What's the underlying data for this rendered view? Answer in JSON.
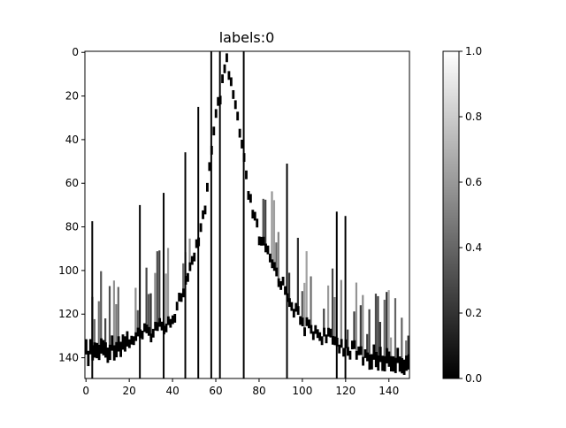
{
  "chart_data": {
    "type": "heatmap",
    "title": "labels:0",
    "xlabel": "",
    "ylabel": "",
    "colormap": "gray",
    "x_ticks": [
      0,
      20,
      40,
      60,
      80,
      100,
      120,
      140
    ],
    "y_ticks": [
      0,
      20,
      40,
      60,
      80,
      100,
      120,
      140
    ],
    "xlim": [
      -0.5,
      149.5
    ],
    "ylim": [
      149.5,
      -0.5
    ],
    "grid": false,
    "colorbar": {
      "ticks": [
        "0.0",
        "0.2",
        "0.4",
        "0.6",
        "0.8",
        "1.0"
      ],
      "min": 0.0,
      "max": 1.0
    },
    "matrix_shape": [
      150,
      150
    ],
    "background_value": 1.0,
    "ridge_profile": {
      "description_points_x": [
        0,
        10,
        20,
        30,
        40,
        50,
        55,
        60,
        65,
        70,
        75,
        80,
        90,
        100,
        110,
        120,
        130,
        140,
        149
      ],
      "row_y": [
        138,
        136,
        132,
        128,
        122,
        95,
        70,
        30,
        5,
        30,
        65,
        85,
        105,
        125,
        130,
        135,
        140,
        141,
        142
      ]
    },
    "vertical_dark_columns": [
      3,
      25,
      36,
      46,
      52,
      58,
      62,
      73,
      93,
      116,
      120
    ]
  }
}
